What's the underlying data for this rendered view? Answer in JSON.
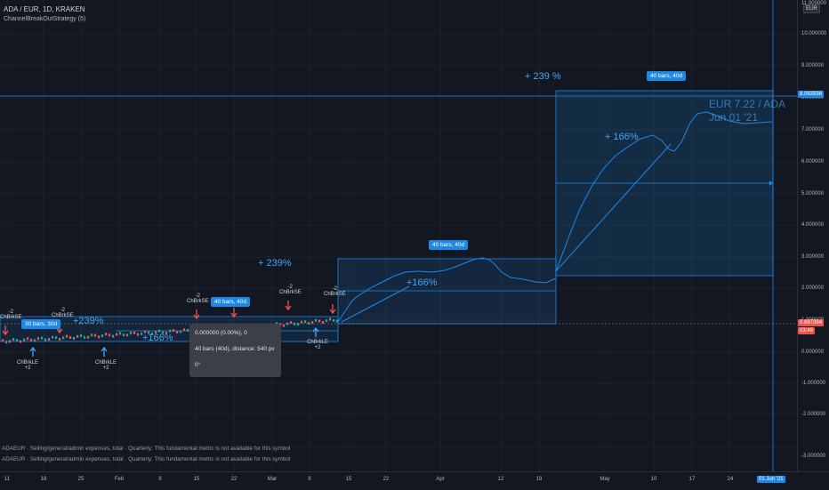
{
  "legend": {
    "symbol_line": "ADA / EUR, 1D, KRAKEN",
    "strategy_line": "ChannelBreakOutStrategy (5)"
  },
  "price_axis": {
    "currency": "EUR",
    "labels": [
      "11.000000",
      "10.000000",
      "9.000000",
      "8.000000",
      "7.000000",
      "6.000000",
      "5.000000",
      "4.000000",
      "3.000000",
      "2.000000",
      "1.000000",
      "0.000000",
      "-1.000000",
      "-2.000000",
      "-3.000000"
    ],
    "tag_top": "8.063936",
    "tag_price": "0.897384",
    "tag_countdown": "03:49"
  },
  "time_axis": {
    "labels": [
      "11",
      "18",
      "25",
      "Feb",
      "8",
      "15",
      "22",
      "Mar",
      "8",
      "15",
      "22",
      "Apr",
      "12",
      "19",
      "May",
      "10",
      "17",
      "24",
      "31"
    ],
    "highlight": "01 Jun '21"
  },
  "measures": [
    {
      "box_label": "30 bars, 30d",
      "percent": "+239%",
      "inner_percent": "+166%"
    },
    {
      "box_label": "40 bars, 40d",
      "percent": "+ 239%",
      "inner_percent": "+166%"
    },
    {
      "box_label": "40 bars, 40d",
      "percent": "+ 239 %",
      "inner_percent": "+ 166%"
    },
    {
      "box_label": "40 bars, 40d"
    }
  ],
  "signals": {
    "long_name": "ChBrkLE",
    "long_qty": "+2",
    "short_name": "ChBrkSE",
    "short_qty": "-2"
  },
  "annotation": {
    "line1": "EUR 7.22 / ADA",
    "line2": "Jun 01 '21"
  },
  "tooltip": {
    "line1": "0.000000 (0.00%), 0",
    "line2": "40 bars (40d), distance: 540 px",
    "line3": "0°"
  },
  "info_panel": [
    "ADAEUR · Selling/general/admin expenses, total · Quarterly: This fundamental metric is not available for this symbol",
    "ADAEUR · Selling/general/admin expenses, total · Quarterly: This fundamental metric is not available for this symbol"
  ],
  "colors": {
    "background": "#131722",
    "accent": "#2196f3",
    "up": "#26a69a",
    "down": "#ef5350"
  }
}
